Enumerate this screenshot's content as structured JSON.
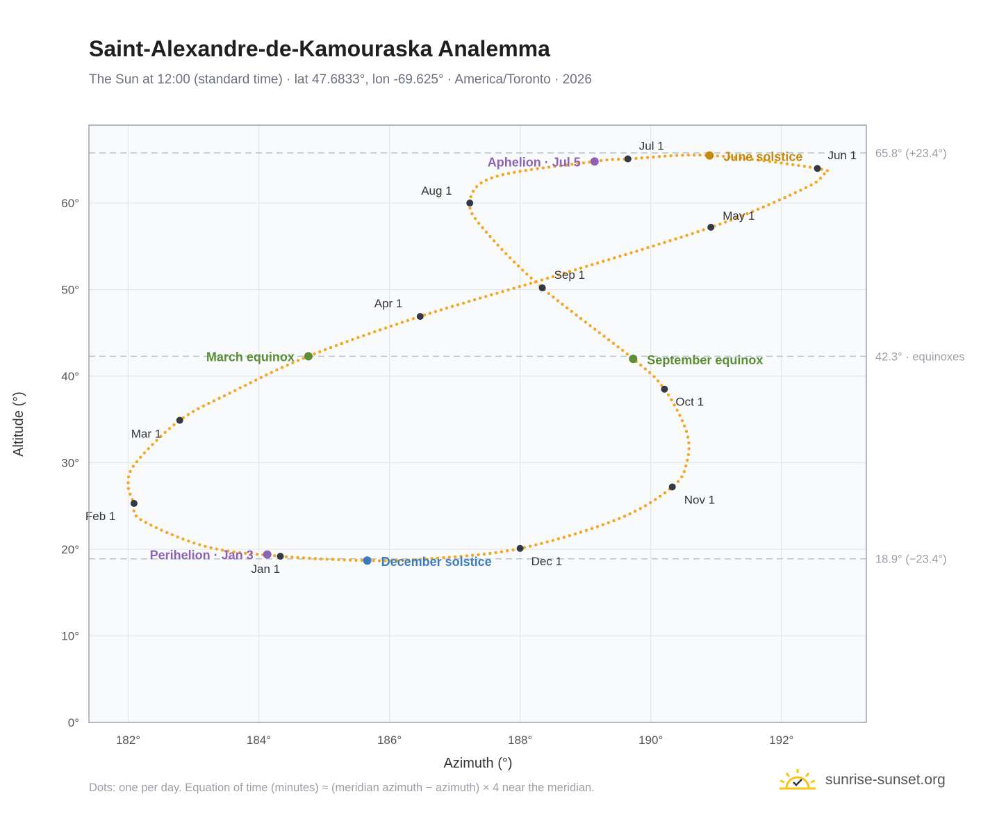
{
  "header": {
    "title": "Saint-Alexandre-de-Kamouraska Analemma",
    "subtitle": "The Sun at 12:00 (standard time) · lat 47.6833°, lon -69.625° · America/Toronto · 2026"
  },
  "footer": {
    "note": "Dots: one per day. Equation of time (minutes) ≈ (meridian azimuth − azimuth) × 4 near the meridian.",
    "brand": "sunrise-sunset.org",
    "brand_icon": "sun-logo-icon"
  },
  "colors": {
    "path": "#f5a623",
    "month_dot": "#333a45",
    "event_purple": "#8e62b5",
    "event_green": "#5a8f35",
    "event_gold": "#c58a0c",
    "event_blue": "#3b7bbf",
    "plot_bg": "#f8fafc",
    "grid": "#e3e7ec",
    "ref_line": "#b7c2cc",
    "frame": "#9aa3ad"
  },
  "chart_data": {
    "type": "scatter",
    "title": "Saint-Alexandre-de-Kamouraska Analemma",
    "xlabel": "Azimuth (°)",
    "ylabel": "Altitude (°)",
    "xlim": [
      181.4,
      193.3
    ],
    "ylim": [
      0,
      69
    ],
    "xticks": [
      182,
      184,
      186,
      188,
      190,
      192
    ],
    "xtick_labels": [
      "182°",
      "184°",
      "186°",
      "188°",
      "190°",
      "192°"
    ],
    "yticks": [
      0,
      10,
      20,
      30,
      40,
      50,
      60
    ],
    "ytick_labels": [
      "0°",
      "10°",
      "20°",
      "30°",
      "40°",
      "50°",
      "60°"
    ],
    "grid": true,
    "reference_lines": [
      {
        "y": 65.8,
        "label": "65.8° (+23.4°)"
      },
      {
        "y": 42.3,
        "label": "42.3° · equinoxes"
      },
      {
        "y": 18.9,
        "label": "18.9° (−23.4°)"
      }
    ],
    "monthly_points": [
      {
        "label": "Jan 1",
        "x": 184.33,
        "y": 19.2
      },
      {
        "label": "Feb 1",
        "x": 182.09,
        "y": 25.3
      },
      {
        "label": "Mar 1",
        "x": 182.79,
        "y": 34.9
      },
      {
        "label": "Apr 1",
        "x": 186.47,
        "y": 46.9
      },
      {
        "label": "May 1",
        "x": 190.92,
        "y": 57.2
      },
      {
        "label": "Jun 1",
        "x": 192.55,
        "y": 64.0
      },
      {
        "label": "Jul 1",
        "x": 189.65,
        "y": 65.1
      },
      {
        "label": "Aug 1",
        "x": 187.23,
        "y": 60.0
      },
      {
        "label": "Sep 1",
        "x": 188.34,
        "y": 50.2
      },
      {
        "label": "Oct 1",
        "x": 190.21,
        "y": 38.5
      },
      {
        "label": "Nov 1",
        "x": 190.33,
        "y": 27.2
      },
      {
        "label": "Dec 1",
        "x": 188.0,
        "y": 20.1
      }
    ],
    "events": [
      {
        "label": "Perihelion · Jan 3",
        "x": 184.13,
        "y": 19.4,
        "color": "#8e62b5"
      },
      {
        "label": "March equinox",
        "x": 184.76,
        "y": 42.3,
        "color": "#5a8f35"
      },
      {
        "label": "June solstice",
        "x": 190.9,
        "y": 65.5,
        "color": "#c58a0c"
      },
      {
        "label": "Aphelion · Jul 5",
        "x": 189.14,
        "y": 64.8,
        "color": "#8e62b5"
      },
      {
        "label": "September equinox",
        "x": 189.73,
        "y": 42.0,
        "color": "#5a8f35"
      },
      {
        "label": "December solstice",
        "x": 185.66,
        "y": 18.7,
        "color": "#3b7bbf"
      }
    ],
    "path_anchors": [
      {
        "x": 184.33,
        "y": 19.2
      },
      {
        "x": 183.2,
        "y": 20.3
      },
      {
        "x": 182.2,
        "y": 23.4
      },
      {
        "x": 182.09,
        "y": 25.3
      },
      {
        "x": 182.0,
        "y": 27.5
      },
      {
        "x": 182.12,
        "y": 30.0
      },
      {
        "x": 182.79,
        "y": 34.9
      },
      {
        "x": 183.6,
        "y": 38.2
      },
      {
        "x": 184.76,
        "y": 42.3
      },
      {
        "x": 186.47,
        "y": 46.9
      },
      {
        "x": 188.5,
        "y": 51.5
      },
      {
        "x": 190.92,
        "y": 57.2
      },
      {
        "x": 192.3,
        "y": 61.5
      },
      {
        "x": 192.63,
        "y": 63.2
      },
      {
        "x": 192.55,
        "y": 64.0
      },
      {
        "x": 190.9,
        "y": 65.5
      },
      {
        "x": 189.65,
        "y": 65.1
      },
      {
        "x": 189.14,
        "y": 64.8
      },
      {
        "x": 187.6,
        "y": 63.0
      },
      {
        "x": 187.23,
        "y": 60.0
      },
      {
        "x": 187.5,
        "y": 56.5
      },
      {
        "x": 188.34,
        "y": 50.2
      },
      {
        "x": 189.73,
        "y": 42.0
      },
      {
        "x": 190.21,
        "y": 38.5
      },
      {
        "x": 190.55,
        "y": 33.5
      },
      {
        "x": 190.55,
        "y": 30.0
      },
      {
        "x": 190.33,
        "y": 27.2
      },
      {
        "x": 189.5,
        "y": 23.5
      },
      {
        "x": 188.0,
        "y": 20.1
      },
      {
        "x": 186.6,
        "y": 18.9
      },
      {
        "x": 185.66,
        "y": 18.7
      },
      {
        "x": 184.33,
        "y": 19.2
      }
    ],
    "days": 365
  }
}
